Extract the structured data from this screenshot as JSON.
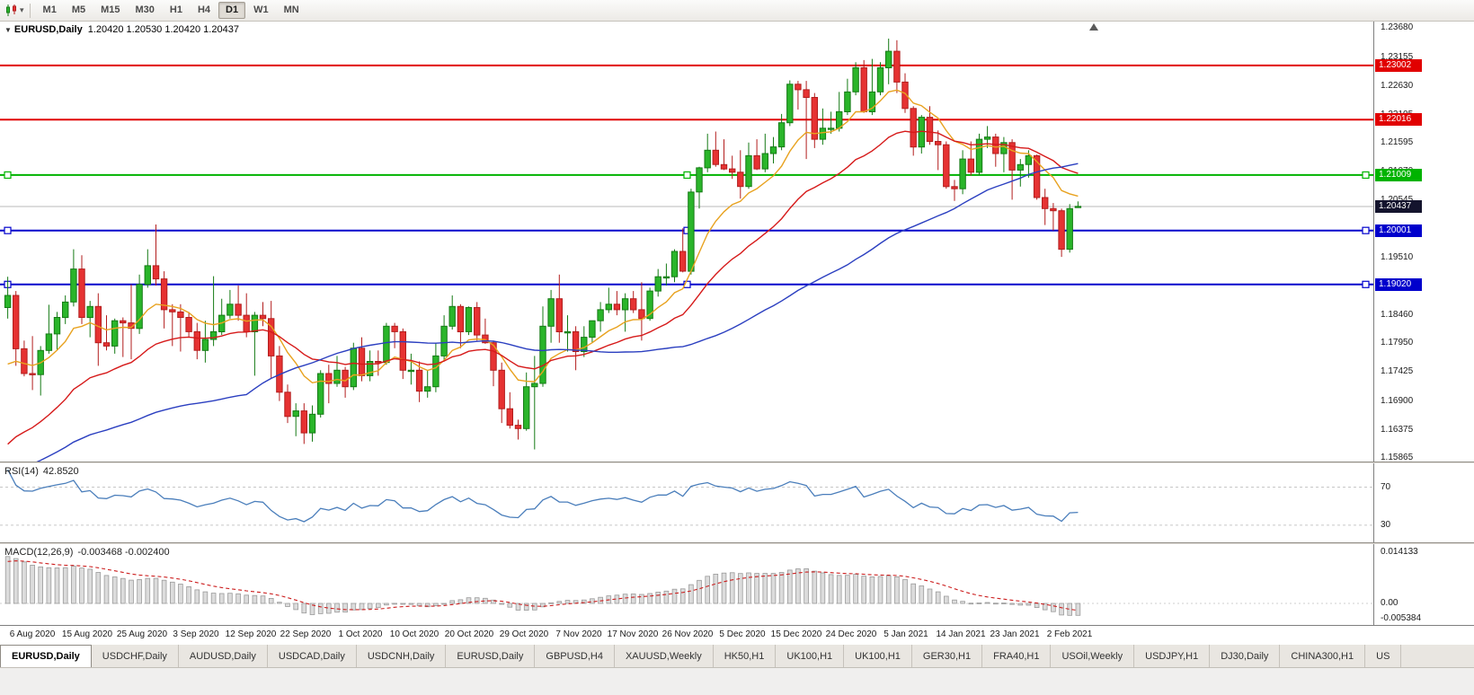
{
  "toolbar": {
    "timeframes": [
      "M1",
      "M5",
      "M15",
      "M30",
      "H1",
      "H4",
      "D1",
      "W1",
      "MN"
    ],
    "selected_timeframe": "D1"
  },
  "chart_header": {
    "symbol": "EURUSD,Daily",
    "ohlc": "1.20420 1.20530 1.20420 1.20437"
  },
  "rsi_header": {
    "name": "RSI(14)",
    "value": "42.8520"
  },
  "macd_header": {
    "name": "MACD(12,26,9)",
    "values": "-0.003468 -0.002400"
  },
  "colors": {
    "bull": "#2ab52a",
    "bull_stroke": "#157a15",
    "bear": "#e63232",
    "bear_stroke": "#b21d1d",
    "bid_line": "#b9b9b9",
    "bid_label_bg": "#14142d"
  },
  "chart_data": {
    "type": "candlestick",
    "symbol": "EURUSD",
    "period": "Daily",
    "price_range": {
      "min": 1.158,
      "max": 1.238
    },
    "price_axis_ticks": [
      "1.23680",
      "1.23155",
      "1.22630",
      "1.22105",
      "1.21595",
      "1.21070",
      "1.20545",
      "1.20035",
      "1.19510",
      "1.18985",
      "1.18460",
      "1.17950",
      "1.17425",
      "1.16900",
      "1.16375",
      "1.15865"
    ],
    "date_labels": [
      "6 Aug 2020",
      "15 Aug 2020",
      "25 Aug 2020",
      "3 Sep 2020",
      "12 Sep 2020",
      "22 Sep 2020",
      "1 Oct 2020",
      "10 Oct 2020",
      "20 Oct 2020",
      "29 Oct 2020",
      "7 Nov 2020",
      "17 Nov 2020",
      "26 Nov 2020",
      "5 Dec 2020",
      "15 Dec 2020",
      "24 Dec 2020",
      "5 Jan 2021",
      "14 Jan 2021",
      "23 Jan 2021",
      "2 Feb 2021"
    ],
    "levels": [
      {
        "price": 1.23002,
        "label": "1.23002",
        "color": "#e10000",
        "handles": false
      },
      {
        "price": 1.22016,
        "label": "1.22016",
        "color": "#e10000",
        "handles": false
      },
      {
        "price": 1.21009,
        "label": "1.21009",
        "color": "#00b300",
        "handles": true
      },
      {
        "price": 1.20001,
        "label": "1.20001",
        "color": "#0000cc",
        "handles": true
      },
      {
        "price": 1.1902,
        "label": "1.19020",
        "color": "#0000cc",
        "handles": true
      }
    ],
    "current_price": {
      "value": 1.20437,
      "label": "1.20437"
    },
    "moving_averages": [
      {
        "name": "fast-ma",
        "type": "ema",
        "period": 10,
        "color": "#e8a21f"
      },
      {
        "name": "mid-ma",
        "type": "ema",
        "period": 25,
        "color": "#d61a1a"
      },
      {
        "name": "slow-ma",
        "type": "sma",
        "period": 55,
        "color": "#2b3fc0"
      }
    ],
    "rsi": {
      "period": 14,
      "levels": [
        70,
        30
      ],
      "range": {
        "min": 12,
        "max": 95
      },
      "color": "#4a7ebb",
      "current": 42.852
    },
    "macd": {
      "fast": 12,
      "slow": 26,
      "signal": 9,
      "range": {
        "min": -0.006,
        "max": 0.0165
      },
      "axis_labels": [
        {
          "value": 0.014133,
          "label": "0.014133"
        },
        {
          "value": 0,
          "label": "0.00"
        },
        {
          "value": -0.005384,
          "label": "-0.005384"
        }
      ],
      "histogram_color": "#dcdcdc",
      "histogram_stroke": "#9a9a9a",
      "signal_color": "#cc1f1f",
      "current_macd": -0.003468,
      "current_signal": -0.0024
    },
    "warmup_closes": [
      1.1252,
      1.1281,
      1.1306,
      1.1332,
      1.1312,
      1.1346,
      1.1381,
      1.1402,
      1.1426,
      1.1401,
      1.1442,
      1.1481,
      1.1532,
      1.1571,
      1.1602,
      1.1641,
      1.169,
      1.1721,
      1.1752,
      1.1781,
      1.1746,
      1.1772,
      1.1786,
      1.1776,
      1.1812
    ],
    "candles": [
      [
        1.186,
        1.1916,
        1.184,
        1.1882
      ],
      [
        1.1882,
        1.189,
        1.1754,
        1.1785
      ],
      [
        1.1785,
        1.18,
        1.1735,
        1.174
      ],
      [
        1.174,
        1.1808,
        1.171,
        1.1738
      ],
      [
        1.1738,
        1.179,
        1.17,
        1.1782
      ],
      [
        1.1782,
        1.1865,
        1.1776,
        1.1812
      ],
      [
        1.1812,
        1.1852,
        1.1782,
        1.1842
      ],
      [
        1.1842,
        1.1882,
        1.183,
        1.187
      ],
      [
        1.187,
        1.1966,
        1.1862,
        1.193
      ],
      [
        1.193,
        1.1955,
        1.183,
        1.1842
      ],
      [
        1.1842,
        1.1872,
        1.1806,
        1.1862
      ],
      [
        1.1862,
        1.1886,
        1.1754,
        1.1796
      ],
      [
        1.1796,
        1.1846,
        1.1782,
        1.179
      ],
      [
        1.179,
        1.184,
        1.1776,
        1.1836
      ],
      [
        1.1836,
        1.1842,
        1.177,
        1.1832
      ],
      [
        1.1832,
        1.1902,
        1.1766,
        1.1822
      ],
      [
        1.1822,
        1.192,
        1.1812,
        1.1902
      ],
      [
        1.1902,
        1.1966,
        1.1896,
        1.1936
      ],
      [
        1.1936,
        1.2011,
        1.19,
        1.1912
      ],
      [
        1.1912,
        1.1926,
        1.1822,
        1.1856
      ],
      [
        1.1856,
        1.1866,
        1.179,
        1.1852
      ],
      [
        1.1852,
        1.1866,
        1.178,
        1.1842
      ],
      [
        1.1842,
        1.1852,
        1.1806,
        1.1816
      ],
      [
        1.1816,
        1.1832,
        1.1766,
        1.1782
      ],
      [
        1.1782,
        1.1836,
        1.176,
        1.1802
      ],
      [
        1.1802,
        1.1917,
        1.179,
        1.1816
      ],
      [
        1.1816,
        1.1876,
        1.181,
        1.1846
      ],
      [
        1.1846,
        1.1892,
        1.184,
        1.1866
      ],
      [
        1.1866,
        1.19,
        1.1836,
        1.1846
      ],
      [
        1.1846,
        1.1886,
        1.1806,
        1.1816
      ],
      [
        1.1816,
        1.1852,
        1.1736,
        1.1846
      ],
      [
        1.1846,
        1.187,
        1.1826,
        1.184
      ],
      [
        1.184,
        1.1872,
        1.173,
        1.1772
      ],
      [
        1.1772,
        1.179,
        1.169,
        1.1706
      ],
      [
        1.1706,
        1.172,
        1.165,
        1.1662
      ],
      [
        1.1662,
        1.1686,
        1.1626,
        1.1672
      ],
      [
        1.1672,
        1.1686,
        1.1612,
        1.1632
      ],
      [
        1.1632,
        1.1682,
        1.1616,
        1.1666
      ],
      [
        1.1666,
        1.1746,
        1.166,
        1.174
      ],
      [
        1.174,
        1.1756,
        1.1686,
        1.1722
      ],
      [
        1.1722,
        1.1772,
        1.1716,
        1.1746
      ],
      [
        1.1746,
        1.1752,
        1.1696,
        1.1716
      ],
      [
        1.1716,
        1.1796,
        1.171,
        1.1786
      ],
      [
        1.1786,
        1.1806,
        1.1726,
        1.1736
      ],
      [
        1.1736,
        1.1782,
        1.1726,
        1.1762
      ],
      [
        1.1762,
        1.1782,
        1.1736,
        1.176
      ],
      [
        1.176,
        1.1832,
        1.1756,
        1.1826
      ],
      [
        1.1826,
        1.1832,
        1.1786,
        1.1816
      ],
      [
        1.1816,
        1.1822,
        1.173,
        1.1746
      ],
      [
        1.1746,
        1.1776,
        1.172,
        1.1746
      ],
      [
        1.1746,
        1.1762,
        1.1688,
        1.1708
      ],
      [
        1.1708,
        1.1746,
        1.1696,
        1.1716
      ],
      [
        1.1716,
        1.1796,
        1.1706,
        1.1772
      ],
      [
        1.1772,
        1.1846,
        1.1762,
        1.1826
      ],
      [
        1.1826,
        1.1882,
        1.182,
        1.1862
      ],
      [
        1.1862,
        1.1866,
        1.1786,
        1.1816
      ],
      [
        1.1816,
        1.1862,
        1.181,
        1.186
      ],
      [
        1.186,
        1.187,
        1.18,
        1.181
      ],
      [
        1.181,
        1.184,
        1.1794,
        1.1796
      ],
      [
        1.1796,
        1.18,
        1.1717,
        1.1746
      ],
      [
        1.1746,
        1.176,
        1.165,
        1.1676
      ],
      [
        1.1676,
        1.1706,
        1.164,
        1.1646
      ],
      [
        1.1646,
        1.1656,
        1.162,
        1.164
      ],
      [
        1.164,
        1.1742,
        1.1636,
        1.1716
      ],
      [
        1.1716,
        1.1772,
        1.1602,
        1.1722
      ],
      [
        1.1722,
        1.1862,
        1.1716,
        1.1826
      ],
      [
        1.1826,
        1.1892,
        1.1796,
        1.1876
      ],
      [
        1.1876,
        1.192,
        1.1796,
        1.1816
      ],
      [
        1.1816,
        1.1846,
        1.178,
        1.1816
      ],
      [
        1.1816,
        1.1826,
        1.1746,
        1.178
      ],
      [
        1.178,
        1.1826,
        1.177,
        1.1806
      ],
      [
        1.1806,
        1.1836,
        1.1796,
        1.1836
      ],
      [
        1.1836,
        1.187,
        1.1816,
        1.1856
      ],
      [
        1.1856,
        1.1896,
        1.185,
        1.1866
      ],
      [
        1.1866,
        1.189,
        1.1846,
        1.1856
      ],
      [
        1.1856,
        1.1886,
        1.1816,
        1.1876
      ],
      [
        1.1876,
        1.189,
        1.185,
        1.1856
      ],
      [
        1.1856,
        1.1906,
        1.18,
        1.184
      ],
      [
        1.184,
        1.1896,
        1.1836,
        1.189
      ],
      [
        1.189,
        1.193,
        1.188,
        1.1916
      ],
      [
        1.1916,
        1.194,
        1.19,
        1.1916
      ],
      [
        1.1916,
        1.1966,
        1.1906,
        1.1962
      ],
      [
        1.1962,
        1.2004,
        1.1924,
        1.1926
      ],
      [
        1.1926,
        1.2076,
        1.192,
        1.207
      ],
      [
        1.207,
        1.2116,
        1.204,
        1.2114
      ],
      [
        1.2114,
        1.2176,
        1.2106,
        1.2146
      ],
      [
        1.2146,
        1.218,
        1.2116,
        1.212
      ],
      [
        1.212,
        1.2166,
        1.211,
        1.2112
      ],
      [
        1.2112,
        1.2136,
        1.2094,
        1.2106
      ],
      [
        1.2106,
        1.2146,
        1.2058,
        1.208
      ],
      [
        1.208,
        1.216,
        1.2076,
        1.2136
      ],
      [
        1.2136,
        1.2166,
        1.211,
        1.2112
      ],
      [
        1.2112,
        1.2176,
        1.2106,
        1.214
      ],
      [
        1.214,
        1.217,
        1.2122,
        1.2152
      ],
      [
        1.2152,
        1.2212,
        1.2146,
        1.2196
      ],
      [
        1.2196,
        1.2273,
        1.219,
        1.2266
      ],
      [
        1.2266,
        1.2272,
        1.222,
        1.2256
      ],
      [
        1.2256,
        1.2272,
        1.213,
        1.2242
      ],
      [
        1.2242,
        1.225,
        1.215,
        1.2166
      ],
      [
        1.2166,
        1.2222,
        1.2156,
        1.2186
      ],
      [
        1.2186,
        1.2216,
        1.2176,
        1.2186
      ],
      [
        1.2186,
        1.2252,
        1.218,
        1.2216
      ],
      [
        1.2216,
        1.2276,
        1.221,
        1.2252
      ],
      [
        1.2252,
        1.2306,
        1.2246,
        1.2296
      ],
      [
        1.2296,
        1.231,
        1.2214,
        1.2216
      ],
      [
        1.2216,
        1.2312,
        1.221,
        1.2252
      ],
      [
        1.2252,
        1.2306,
        1.2246,
        1.2296
      ],
      [
        1.2296,
        1.2349,
        1.2266,
        1.2326
      ],
      [
        1.2326,
        1.2346,
        1.225,
        1.227
      ],
      [
        1.227,
        1.2286,
        1.2214,
        1.2222
      ],
      [
        1.2222,
        1.2226,
        1.2136,
        1.2152
      ],
      [
        1.2152,
        1.221,
        1.214,
        1.2206
      ],
      [
        1.2206,
        1.2226,
        1.2156,
        1.2162
      ],
      [
        1.2162,
        1.2182,
        1.211,
        1.2156
      ],
      [
        1.2156,
        1.2162,
        1.2076,
        1.208
      ],
      [
        1.208,
        1.2092,
        1.2054,
        1.2076
      ],
      [
        1.2076,
        1.2146,
        1.2066,
        1.213
      ],
      [
        1.213,
        1.2162,
        1.21,
        1.2106
      ],
      [
        1.2106,
        1.2176,
        1.21,
        1.2166
      ],
      [
        1.2166,
        1.219,
        1.215,
        1.217
      ],
      [
        1.217,
        1.2176,
        1.2116,
        1.214
      ],
      [
        1.214,
        1.217,
        1.2106,
        1.216
      ],
      [
        1.216,
        1.2166,
        1.2056,
        1.211
      ],
      [
        1.211,
        1.213,
        1.208,
        1.212
      ],
      [
        1.212,
        1.2146,
        1.2096,
        1.2136
      ],
      [
        1.2136,
        1.2138,
        1.2056,
        1.206
      ],
      [
        1.206,
        1.2076,
        1.201,
        1.204
      ],
      [
        1.204,
        1.205,
        1.2,
        1.2036
      ],
      [
        1.2036,
        1.204,
        1.1952,
        1.1966
      ],
      [
        1.1966,
        1.2048,
        1.196,
        1.204
      ],
      [
        1.2042,
        1.2053,
        1.2042,
        1.2044
      ]
    ]
  },
  "tabs": {
    "items": [
      {
        "label": "EURUSD,Daily",
        "active": true
      },
      {
        "label": "USDCHF,Daily",
        "active": false
      },
      {
        "label": "AUDUSD,Daily",
        "active": false
      },
      {
        "label": "USDCAD,Daily",
        "active": false
      },
      {
        "label": "USDCNH,Daily",
        "active": false
      },
      {
        "label": "EURUSD,Daily",
        "active": false
      },
      {
        "label": "GBPUSD,H4",
        "active": false
      },
      {
        "label": "XAUUSD,Weekly",
        "active": false
      },
      {
        "label": "HK50,H1",
        "active": false
      },
      {
        "label": "UK100,H1",
        "active": false
      },
      {
        "label": "UK100,H1",
        "active": false
      },
      {
        "label": "GER30,H1",
        "active": false
      },
      {
        "label": "FRA40,H1",
        "active": false
      },
      {
        "label": "USOil,Weekly",
        "active": false
      },
      {
        "label": "USDJPY,H1",
        "active": false
      },
      {
        "label": "DJ30,Daily",
        "active": false
      },
      {
        "label": "CHINA300,H1",
        "active": false
      },
      {
        "label": "US",
        "active": false
      }
    ]
  }
}
